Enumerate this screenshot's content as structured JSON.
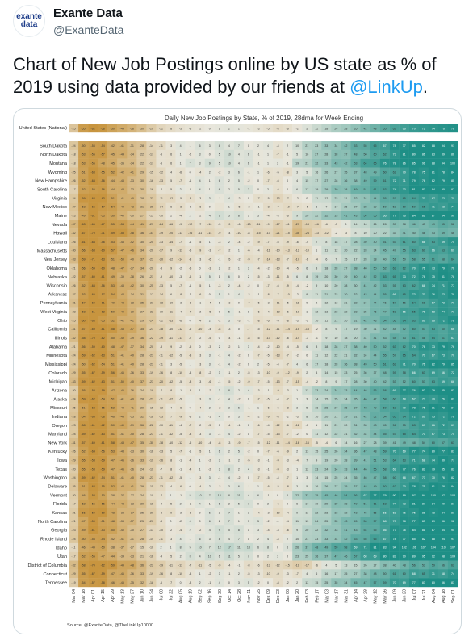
{
  "account": {
    "display_name": "Exante Data",
    "handle": "@ExanteData",
    "avatar_line1": "exante",
    "avatar_line2": "data"
  },
  "tweet": {
    "text": "Chart of New Job Postings online by US state as % of 2019 using data provided by our friends at ",
    "mention": "@LinkUp",
    "text_end": "."
  },
  "colors": {
    "low": "#c8953f",
    "mid": "#e8e6dc",
    "high": "#1e8f86",
    "mention": "#1d9bf0"
  },
  "chart_data": {
    "type": "heatmap",
    "title": "Daily New Job Postings by State, % of 2019, 28dma for Week Ending",
    "source": "Source: @ExanteData, @TheLinkUp10000",
    "national_row": "United States (National)",
    "rows": [
      "South Dakota",
      "North Dakota",
      "Montana",
      "Wyoming",
      "New Hampshire",
      "South Carolina",
      "Virginia",
      "New Mexico",
      "Maine",
      "Nevada",
      "Hawaii",
      "Louisiana",
      "Massachusetts",
      "New Jersey",
      "Oklahoma",
      "Nebraska",
      "Wisconsin",
      "Arkansas",
      "Pennsylvania",
      "West Virginia",
      "Ohio",
      "California",
      "Illinois",
      "Alabama",
      "Minnesota",
      "Mississippi",
      "Colorado",
      "Michigan",
      "Arizona",
      "Alaska",
      "Missouri",
      "Indiana",
      "Oregon",
      "Maryland",
      "New York",
      "Kentucky",
      "Iowa",
      "Texas",
      "Washington",
      "Delaware",
      "Vermont",
      "Florida",
      "Kansas",
      "North Carolina",
      "Georgia",
      "Rhode Island",
      "Idaho",
      "Utah",
      "District of Columbia",
      "Connecticut",
      "Tennessee"
    ],
    "columns": [
      "Mar 04",
      "Mar 18",
      "Apr 01",
      "Apr 15",
      "Apr 29",
      "May 13",
      "May 27",
      "Jun 10",
      "Jun 24",
      "Jul 08",
      "Jul 22",
      "Aug 05",
      "Aug 19",
      "Sep 02",
      "Sep 16",
      "Sep 30",
      "Oct 14",
      "Oct 28",
      "Nov 11",
      "Nov 25",
      "Dec 09",
      "Dec 23",
      "Jan 06",
      "Jan 20",
      "Feb 03",
      "Feb 17",
      "Mar 03",
      "Mar 17",
      "Mar 31",
      "Apr 14",
      "Apr 28",
      "May 12",
      "May 26",
      "Jun 09",
      "Jun 23",
      "Jul 07",
      "Jul 21",
      "Aug 04",
      "Aug 18",
      "Sep 01"
    ],
    "value_profile": [
      -25,
      -55,
      -62,
      -58,
      -50,
      -44,
      -38,
      -30,
      -20,
      -12,
      -8,
      -5,
      -3,
      -2,
      0,
      1,
      2,
      1,
      -1,
      -3,
      -5,
      -8,
      -6,
      -2,
      5,
      12,
      18,
      24,
      28,
      35,
      42,
      48,
      55,
      62,
      66,
      70,
      72,
      74,
      76,
      78
    ],
    "row_offsets": [
      8,
      6,
      10,
      2,
      4,
      6,
      -2,
      -4,
      6,
      -14,
      -16,
      -4,
      -6,
      -8,
      0,
      2,
      -2,
      0,
      -4,
      -2,
      -2,
      -8,
      -6,
      0,
      -2,
      2,
      -4,
      -6,
      4,
      0,
      2,
      0,
      -4,
      -2,
      -10,
      2,
      0,
      4,
      0,
      2,
      14,
      6,
      4,
      6,
      6,
      8,
      18,
      12,
      -10,
      -2,
      4
    ]
  }
}
